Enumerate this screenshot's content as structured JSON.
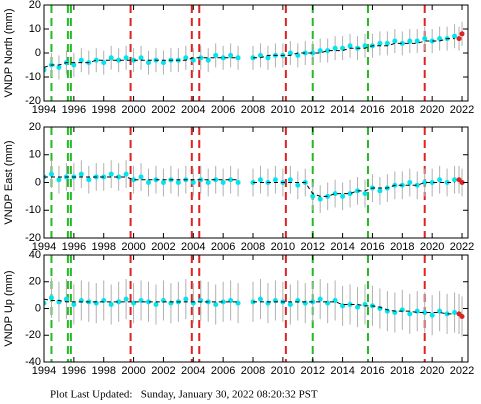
{
  "chart_data": [
    {
      "type": "scatter",
      "ylabel": "VNDP North (mm)",
      "xlim": [
        1994,
        2022.4
      ],
      "xticks": [
        1994,
        1996,
        1998,
        2000,
        2002,
        2004,
        2006,
        2008,
        2010,
        2012,
        2014,
        2016,
        2018,
        2020,
        2022
      ],
      "ylim": [
        -20,
        20
      ],
      "yticks": [
        -20,
        -10,
        0,
        10,
        20
      ],
      "x": [
        1994,
        1994.5,
        1995,
        1995.5,
        1996,
        1996.5,
        1997,
        1997.5,
        1998,
        1998.5,
        1999,
        1999.5,
        2000,
        2000.5,
        2001,
        2001.5,
        2002,
        2002.5,
        2003,
        2003.5,
        2004,
        2004.5,
        2005,
        2005.5,
        2006,
        2006.5,
        2007,
        2007.5,
        2008,
        2008.5,
        2009,
        2009.5,
        2010,
        2010.5,
        2011,
        2011.5,
        2012,
        2012.5,
        2013,
        2013.5,
        2014,
        2014.5,
        2015,
        2015.5,
        2016,
        2016.5,
        2017,
        2017.5,
        2018,
        2018.5,
        2019,
        2019.5,
        2020,
        2020.5,
        2021,
        2021.5
      ],
      "series": [
        {
          "color": "#00e5ee",
          "error": 5,
          "values": [
            -7,
            -5,
            -6,
            -4,
            -5,
            -3,
            -4,
            -3,
            -4,
            -2,
            -3,
            -2,
            -3,
            -2,
            -4,
            -3,
            -4,
            -3,
            -3,
            -2,
            -3,
            -2,
            -3,
            -1,
            -2,
            -1,
            -2,
            null,
            -2,
            -1,
            -2,
            -1,
            -1,
            0,
            -1,
            0,
            0,
            1,
            1,
            2,
            2,
            3,
            2,
            3,
            3,
            4,
            4,
            5,
            4,
            5,
            5,
            6,
            5,
            6,
            6,
            7
          ]
        },
        {
          "color": "#000000",
          "dashed": true,
          "values": [
            -6,
            -5,
            -5,
            -4,
            -4,
            -4,
            -4,
            -3,
            -3,
            -3,
            -3,
            -3,
            -3,
            -3,
            -3,
            -3,
            -3,
            -3,
            -3,
            -3,
            -2,
            -2,
            -2,
            -2,
            -2,
            -2,
            -2,
            null,
            -2,
            -2,
            -1,
            -1,
            -1,
            -1,
            0,
            0,
            0,
            0,
            1,
            1,
            1,
            2,
            2,
            2,
            3,
            3,
            3,
            4,
            4,
            4,
            4,
            5,
            5,
            5,
            6,
            6
          ]
        },
        {
          "color": "#dd2222",
          "error": 5,
          "x": [
            2021.8,
            2022.0
          ],
          "values": [
            6,
            8
          ]
        }
      ]
    },
    {
      "type": "scatter",
      "ylabel": "VNDP East (mm)",
      "xlim": [
        1994,
        2022.4
      ],
      "xticks": [
        1994,
        1996,
        1998,
        2000,
        2002,
        2004,
        2006,
        2008,
        2010,
        2012,
        2014,
        2016,
        2018,
        2020,
        2022
      ],
      "ylim": [
        -20,
        20
      ],
      "yticks": [
        -20,
        -10,
        0,
        10,
        20
      ],
      "x": [
        1994,
        1994.5,
        1995,
        1995.5,
        1996,
        1996.5,
        1997,
        1997.5,
        1998,
        1998.5,
        1999,
        1999.5,
        2000,
        2000.5,
        2001,
        2001.5,
        2002,
        2002.5,
        2003,
        2003.5,
        2004,
        2004.5,
        2005,
        2005.5,
        2006,
        2006.5,
        2007,
        2007.5,
        2008,
        2008.5,
        2009,
        2009.5,
        2010,
        2010.5,
        2011,
        2011.5,
        2012,
        2012.5,
        2013,
        2013.5,
        2014,
        2014.5,
        2015,
        2015.5,
        2016,
        2016.5,
        2017,
        2017.5,
        2018,
        2018.5,
        2019,
        2019.5,
        2020,
        2020.5,
        2021,
        2021.5
      ],
      "series": [
        {
          "color": "#00e5ee",
          "error": 5,
          "values": [
            2,
            3,
            1,
            2,
            2,
            3,
            1,
            2,
            2,
            3,
            2,
            3,
            1,
            2,
            0,
            1,
            0,
            1,
            0,
            1,
            0,
            1,
            0,
            1,
            0,
            1,
            0,
            null,
            0,
            1,
            0,
            1,
            0,
            1,
            -1,
            0,
            -5,
            -6,
            -5,
            -4,
            -5,
            -4,
            -3,
            -4,
            -2,
            -3,
            -2,
            -1,
            -1,
            0,
            -1,
            0,
            0,
            1,
            0,
            1
          ]
        },
        {
          "color": "#000000",
          "dashed": true,
          "values": [
            2,
            2,
            2,
            2,
            2,
            2,
            2,
            2,
            2,
            2,
            2,
            2,
            1,
            1,
            1,
            1,
            1,
            1,
            1,
            1,
            1,
            1,
            1,
            1,
            1,
            1,
            1,
            null,
            0,
            0,
            0,
            0,
            0,
            0,
            0,
            0,
            -4,
            -5,
            -5,
            -4,
            -4,
            -4,
            -3,
            -3,
            -2,
            -2,
            -2,
            -1,
            -1,
            -1,
            -1,
            0,
            0,
            0,
            0,
            0
          ]
        },
        {
          "color": "#dd2222",
          "error": 5,
          "x": [
            2021.8,
            2022.0
          ],
          "values": [
            1,
            0
          ]
        }
      ]
    },
    {
      "type": "scatter",
      "ylabel": "VNDP Up (mm)",
      "xlim": [
        1994,
        2022.4
      ],
      "xticks": [
        1994,
        1996,
        1998,
        2000,
        2002,
        2004,
        2006,
        2008,
        2010,
        2012,
        2014,
        2016,
        2018,
        2020,
        2022
      ],
      "ylim": [
        -40,
        40
      ],
      "yticks": [
        -40,
        -20,
        0,
        20,
        40
      ],
      "x": [
        1994,
        1994.5,
        1995,
        1995.5,
        1996,
        1996.5,
        1997,
        1997.5,
        1998,
        1998.5,
        1999,
        1999.5,
        2000,
        2000.5,
        2001,
        2001.5,
        2002,
        2002.5,
        2003,
        2003.5,
        2004,
        2004.5,
        2005,
        2005.5,
        2006,
        2006.5,
        2007,
        2007.5,
        2008,
        2008.5,
        2009,
        2009.5,
        2010,
        2010.5,
        2011,
        2011.5,
        2012,
        2012.5,
        2013,
        2013.5,
        2014,
        2014.5,
        2015,
        2015.5,
        2016,
        2016.5,
        2017,
        2017.5,
        2018,
        2018.5,
        2019,
        2019.5,
        2020,
        2020.5,
        2021,
        2021.5
      ],
      "series": [
        {
          "color": "#00e5ee",
          "error": 15,
          "values": [
            4,
            8,
            5,
            7,
            3,
            6,
            5,
            4,
            6,
            3,
            5,
            7,
            4,
            6,
            5,
            3,
            6,
            4,
            5,
            7,
            4,
            6,
            5,
            3,
            5,
            6,
            4,
            null,
            5,
            7,
            4,
            6,
            5,
            3,
            6,
            4,
            5,
            7,
            4,
            6,
            2,
            3,
            1,
            3,
            2,
            0,
            -2,
            -3,
            -1,
            -4,
            -2,
            -3,
            -5,
            -2,
            -4,
            -3
          ]
        },
        {
          "color": "#000000",
          "dashed": true,
          "values": [
            7,
            6,
            6,
            5,
            5,
            5,
            5,
            5,
            5,
            5,
            5,
            5,
            5,
            5,
            5,
            5,
            5,
            5,
            5,
            5,
            5,
            5,
            5,
            5,
            5,
            5,
            5,
            null,
            5,
            5,
            5,
            5,
            5,
            5,
            5,
            5,
            5,
            5,
            5,
            5,
            3,
            3,
            3,
            2,
            2,
            1,
            -1,
            -2,
            -2,
            -2,
            -3,
            -3,
            -3,
            -3,
            -4,
            -4
          ]
        },
        {
          "color": "#dd2222",
          "error": 15,
          "x": [
            2021.8,
            2022.0
          ],
          "values": [
            -4,
            -6
          ]
        }
      ]
    }
  ],
  "breaks": [
    {
      "x": 1994.5,
      "color": "#22bb22"
    },
    {
      "x": 1995.6,
      "color": "#22bb22"
    },
    {
      "x": 1995.8,
      "color": "#22bb22"
    },
    {
      "x": 2012.0,
      "color": "#22bb22"
    },
    {
      "x": 2015.7,
      "color": "#22bb22"
    },
    {
      "x": 1999.8,
      "color": "#dd2222"
    },
    {
      "x": 2003.9,
      "color": "#dd2222"
    },
    {
      "x": 2004.4,
      "color": "#dd2222"
    },
    {
      "x": 2010.2,
      "color": "#dd2222"
    },
    {
      "x": 2019.5,
      "color": "#dd2222"
    }
  ],
  "footer": "Plot Last Updated:   Sunday, January 30, 2022 08:20:32 PST"
}
